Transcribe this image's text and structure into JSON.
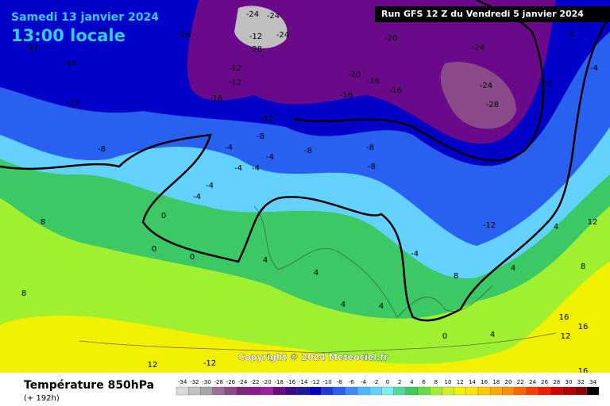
{
  "header": {
    "date": "Samedi 13 janvier 2024",
    "time": "13:00 locale",
    "run": "Run GFS 12 Z du Vendredi 5 janvier 2024"
  },
  "copyright": "Copyright © 2024 Meteociel.fr",
  "footer": {
    "title": "Température 850hPa",
    "lead": "(+ 192h)"
  },
  "scale": {
    "values": [
      -34,
      -32,
      -30,
      -28,
      -26,
      -24,
      -22,
      -20,
      -18,
      -16,
      -14,
      -12,
      -10,
      -8,
      -6,
      -4,
      -2,
      0,
      2,
      4,
      6,
      8,
      10,
      12,
      14,
      16,
      18,
      20,
      22,
      24,
      26,
      28,
      30,
      32,
      34
    ],
    "colors": [
      "#d9d9d9",
      "#bfbfbf",
      "#a6a6a6",
      "#9a6d9a",
      "#8a4a8a",
      "#7a2a7a",
      "#8c1a8c",
      "#a020a0",
      "#6a0a8a",
      "#3c0a8c",
      "#1a1a9c",
      "#0000c8",
      "#1e3cdc",
      "#2860f0",
      "#3c8cff",
      "#50b4ff",
      "#64d2ff",
      "#78f0f0",
      "#50dc96",
      "#3cc864",
      "#64dc46",
      "#a0f032",
      "#d2f028",
      "#f0f000",
      "#ffe600",
      "#ffc800",
      "#ffaa00",
      "#ff8c00",
      "#ff6400",
      "#ff3c00",
      "#f01e00",
      "#d20000",
      "#b40000",
      "#8c0000",
      "#000000"
    ]
  },
  "map_labels": [
    -12,
    -16,
    -12,
    -8,
    -12,
    -16,
    -24,
    -12,
    -28,
    -24,
    -24,
    -12,
    -12,
    -16,
    -12,
    -8,
    -4,
    -4,
    -4,
    -4,
    -4,
    -4,
    0,
    0,
    0,
    -8,
    -8,
    -8,
    -20,
    -24,
    -24,
    -28,
    -16,
    -16,
    -16,
    -20,
    -12,
    -8,
    -4,
    -4,
    4,
    4,
    12,
    8,
    16,
    16,
    12,
    16,
    12,
    -12,
    8,
    8,
    4,
    4,
    4,
    0,
    4,
    8,
    -4,
    4
  ]
}
